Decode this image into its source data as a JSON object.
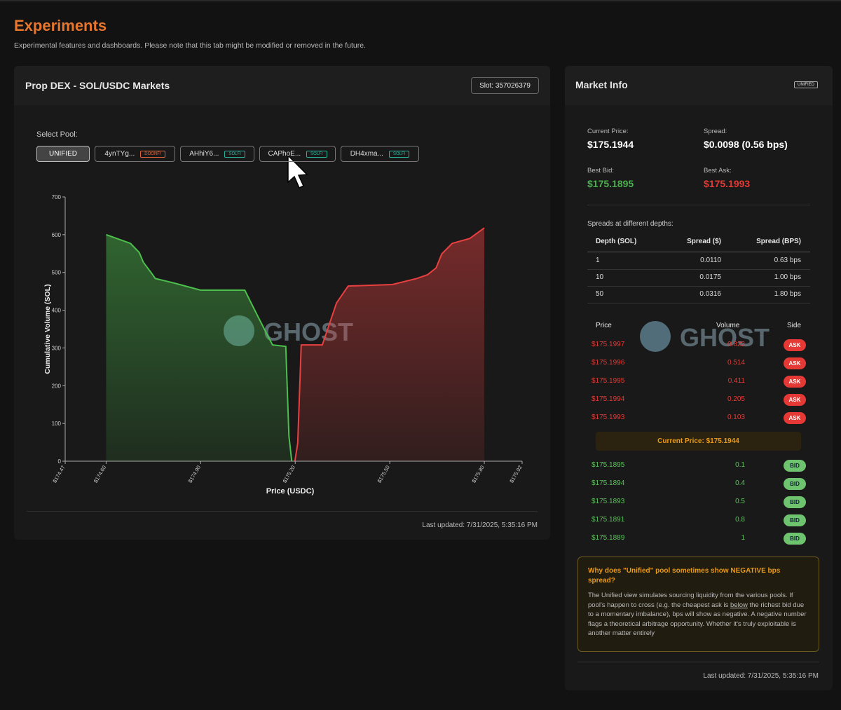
{
  "header": {
    "title": "Experiments",
    "subtitle": "Experimental features and dashboards. Please note that this tab might be modified or removed in the future."
  },
  "dex_panel": {
    "title": "Prop DEX - SOL/USDC Markets",
    "slot": "Slot: 357026379",
    "select_label": "Select Pool:",
    "pools": [
      {
        "name": "UNIFIED"
      },
      {
        "name": "4ynTYg...",
        "tag": "DOONFI",
        "color": "#e0643a"
      },
      {
        "name": "AHhiY6...",
        "tag": "SOLFI",
        "color": "#2bb39a"
      },
      {
        "name": "CAPhoE...",
        "tag": "SOLFI",
        "color": "#2bb39a"
      },
      {
        "name": "DH4xma...",
        "tag": "SOLFI",
        "color": "#2bb39a"
      }
    ],
    "last_updated": "Last updated: 7/31/2025, 5:35:16 PM"
  },
  "chart_data": {
    "type": "area",
    "xlabel": "Price (USDC)",
    "ylabel": "Cumulative Volume (SOL)",
    "xlim": [
      174.47,
      175.92
    ],
    "ylim": [
      0,
      700
    ],
    "xticks": [
      {
        "value": 174.47,
        "label": "$174.47"
      },
      {
        "value": 174.6,
        "label": "$174.60"
      },
      {
        "value": 174.9,
        "label": "$174.90"
      },
      {
        "value": 175.2,
        "label": "$175.20"
      },
      {
        "value": 175.5,
        "label": "$175.50"
      },
      {
        "value": 175.8,
        "label": "$175.80"
      },
      {
        "value": 175.92,
        "label": "$175.92"
      }
    ],
    "yticks": [
      0,
      100,
      200,
      300,
      400,
      500,
      600,
      700
    ],
    "series": [
      {
        "color": "#4cbf4c",
        "x": [
          174.6,
          174.677,
          174.705,
          174.718,
          174.745,
          174.756,
          174.82,
          174.9,
          175.04,
          175.077,
          175.105,
          175.128,
          175.17,
          175.18,
          175.189
        ],
        "values": [
          600,
          577,
          553,
          527,
          497,
          484,
          471,
          453,
          453,
          391,
          345,
          308,
          304,
          67,
          0
        ]
      },
      {
        "color": "#e84040",
        "x": [
          175.199,
          175.208,
          175.219,
          175.286,
          175.331,
          175.368,
          175.508,
          175.586,
          175.62,
          175.647,
          175.665,
          175.698,
          175.754,
          175.8
        ],
        "values": [
          0,
          48,
          308,
          308,
          419,
          464,
          468,
          484,
          494,
          512,
          549,
          577,
          590,
          618
        ]
      }
    ]
  },
  "watermark": "GHOST",
  "market_info": {
    "title": "Market Info",
    "badge": "UNIFIED",
    "stats": [
      {
        "label": "Current Price:",
        "value": "$175.1944"
      },
      {
        "label": "Spread:",
        "value": "$0.0098 (0.56 bps)"
      },
      {
        "label": "Best Bid:",
        "value": "$175.1895"
      },
      {
        "label": "Best Ask:",
        "value": "$175.1993"
      }
    ],
    "depth_title": "Spreads at different depths:",
    "depth_columns": [
      "Depth (SOL)",
      "Spread ($)",
      "Spread (BPS)"
    ],
    "depth_rows": [
      [
        "1",
        "0.0110",
        "0.63 bps"
      ],
      [
        "10",
        "0.0175",
        "1.00 bps"
      ],
      [
        "50",
        "0.0316",
        "1.80 bps"
      ]
    ],
    "book_columns": [
      "Price",
      "Volume",
      "Side"
    ],
    "asks": [
      [
        "$175.1997",
        "0.822",
        "ASK"
      ],
      [
        "$175.1996",
        "0.514",
        "ASK"
      ],
      [
        "$175.1995",
        "0.411",
        "ASK"
      ],
      [
        "$175.1994",
        "0.205",
        "ASK"
      ],
      [
        "$175.1993",
        "0.103",
        "ASK"
      ]
    ],
    "current": "Current Price: $175.1944",
    "bids": [
      [
        "$175.1895",
        "0.1",
        "BID"
      ],
      [
        "$175.1894",
        "0.4",
        "BID"
      ],
      [
        "$175.1893",
        "0.5",
        "BID"
      ],
      [
        "$175.1891",
        "0.8",
        "BID"
      ],
      [
        "$175.1889",
        "1",
        "BID"
      ]
    ],
    "note_title": "Why does \"Unified\" pool sometimes show NEGATIVE bps spread?",
    "note_before": "The Unified view simulates sourcing liquidity from the various pools. If pool's happen to cross (e.g. the cheapest ask is ",
    "note_link": "below",
    "note_after": " the richest bid due to a momentary imbalance), bps will show as negative. A negative number flags a theoretical arbitrage opportunity. Whether it's truly exploitable is another matter entirely",
    "last_updated": "Last updated: 7/31/2025, 5:35:16 PM"
  }
}
